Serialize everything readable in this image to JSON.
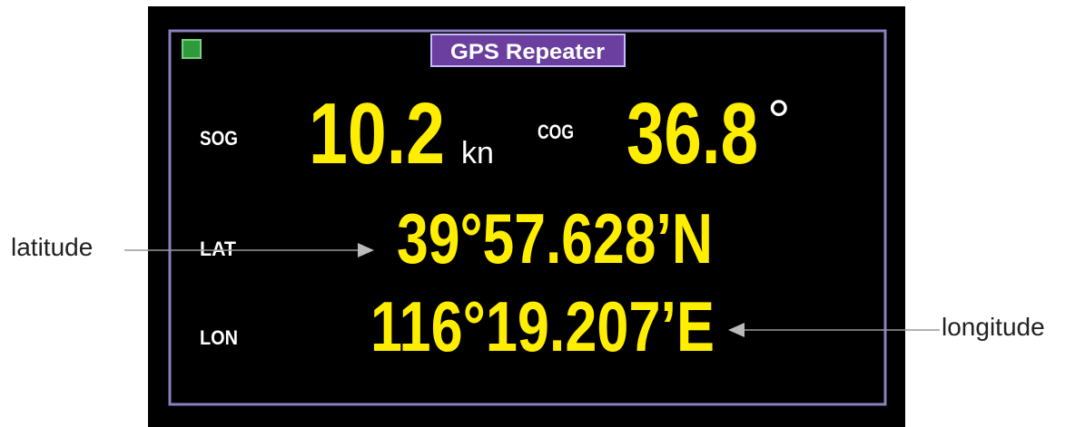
{
  "header": {
    "title": "GPS Repeater"
  },
  "readings": [
    {
      "label": "SOG",
      "value": "10.2",
      "unit": "kn"
    },
    {
      "label": "COG",
      "value": "36.8",
      "unit": "°"
    },
    {
      "label": "LAT",
      "value": "39°57.628’N"
    },
    {
      "label": "LON",
      "value": "116°19.207’E"
    }
  ],
  "callouts": [
    {
      "text": "latitude"
    },
    {
      "text": "longitude"
    }
  ]
}
